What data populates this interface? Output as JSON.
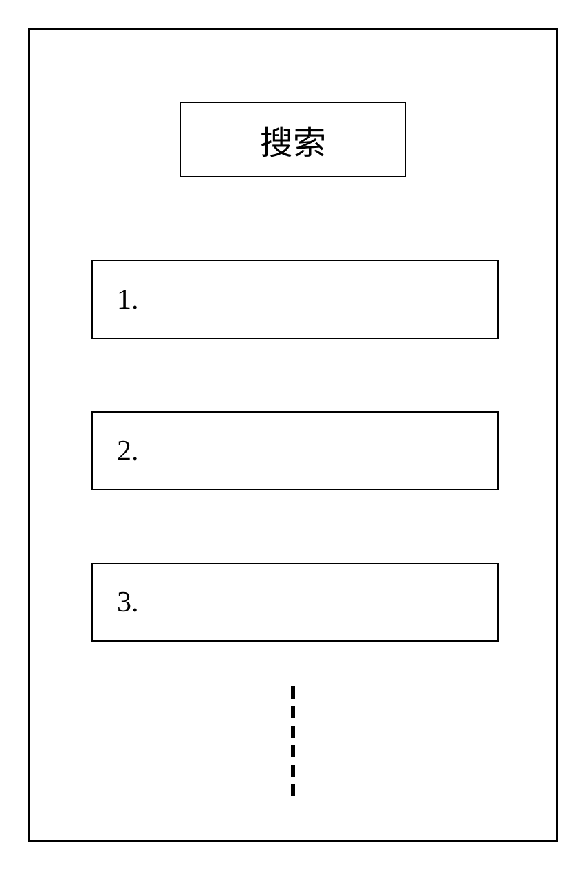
{
  "diagram": {
    "type": "wireframe",
    "outer_frame": {
      "border_color": "#000000",
      "border_width": 3,
      "background_color": "#ffffff"
    },
    "search_box": {
      "label": "搜索",
      "border_color": "#000000",
      "border_width": 2,
      "font_size": 48,
      "font_family": "KaiTi"
    },
    "list_items": [
      {
        "label": "1."
      },
      {
        "label": "2."
      },
      {
        "label": "3."
      }
    ],
    "list_item_style": {
      "border_color": "#000000",
      "border_width": 2,
      "font_size": 42,
      "font_family": "Times New Roman"
    },
    "continuation_indicator": {
      "type": "vertical-dashed-line",
      "dash_count": 6,
      "dash_color": "#000000"
    },
    "colors": {
      "stroke": "#000000",
      "background": "#ffffff"
    }
  }
}
